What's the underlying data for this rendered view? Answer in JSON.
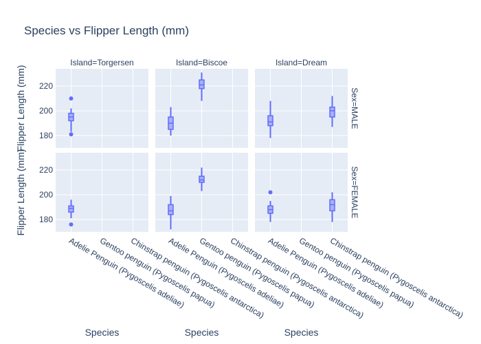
{
  "chart_data": {
    "type": "box",
    "title": "Species vs Flipper Length (mm)",
    "xlabel": "Species",
    "ylabel": "Flipper Length (mm)",
    "ylim": [
      170,
      234
    ],
    "yticks": [
      180,
      200,
      220
    ],
    "categories": [
      "Adelie Penguin (Pygoscelis adeliae)",
      "Gentoo penguin (Pygoscelis papua)",
      "Chinstrap penguin (Pygoscelis antarctica)"
    ],
    "columns": [
      "Island=Torgersen",
      "Island=Biscoe",
      "Island=Dream"
    ],
    "rows": [
      "Sex=MALE",
      "Sex=FEMALE"
    ],
    "color": "#636efa",
    "boxes": [
      {
        "row": 0,
        "col": 0,
        "cat": 0,
        "min": 183,
        "q1": 192,
        "median": 195,
        "q3": 198,
        "max": 202,
        "outliers": [
          210,
          181
        ]
      },
      {
        "row": 0,
        "col": 1,
        "cat": 0,
        "min": 180,
        "q1": 185,
        "median": 190,
        "q3": 195,
        "max": 203,
        "outliers": []
      },
      {
        "row": 0,
        "col": 1,
        "cat": 1,
        "min": 208,
        "q1": 218,
        "median": 221,
        "q3": 225,
        "max": 231,
        "outliers": []
      },
      {
        "row": 0,
        "col": 2,
        "cat": 0,
        "min": 178,
        "q1": 188,
        "median": 191,
        "q3": 196,
        "max": 208,
        "outliers": []
      },
      {
        "row": 0,
        "col": 2,
        "cat": 2,
        "min": 187,
        "q1": 195,
        "median": 200,
        "q3": 203,
        "max": 212,
        "outliers": []
      },
      {
        "row": 1,
        "col": 0,
        "cat": 0,
        "min": 181,
        "q1": 186,
        "median": 189,
        "q3": 191,
        "max": 196,
        "outliers": [
          176
        ]
      },
      {
        "row": 1,
        "col": 1,
        "cat": 0,
        "min": 172,
        "q1": 184,
        "median": 187,
        "q3": 192,
        "max": 199,
        "outliers": []
      },
      {
        "row": 1,
        "col": 1,
        "cat": 1,
        "min": 203,
        "q1": 210,
        "median": 212,
        "q3": 215,
        "max": 222,
        "outliers": []
      },
      {
        "row": 1,
        "col": 2,
        "cat": 0,
        "min": 178,
        "q1": 185,
        "median": 188,
        "q3": 191,
        "max": 195,
        "outliers": [
          202
        ]
      },
      {
        "row": 1,
        "col": 2,
        "cat": 2,
        "min": 178,
        "q1": 187,
        "median": 192,
        "q3": 196,
        "max": 202,
        "outliers": []
      }
    ]
  }
}
